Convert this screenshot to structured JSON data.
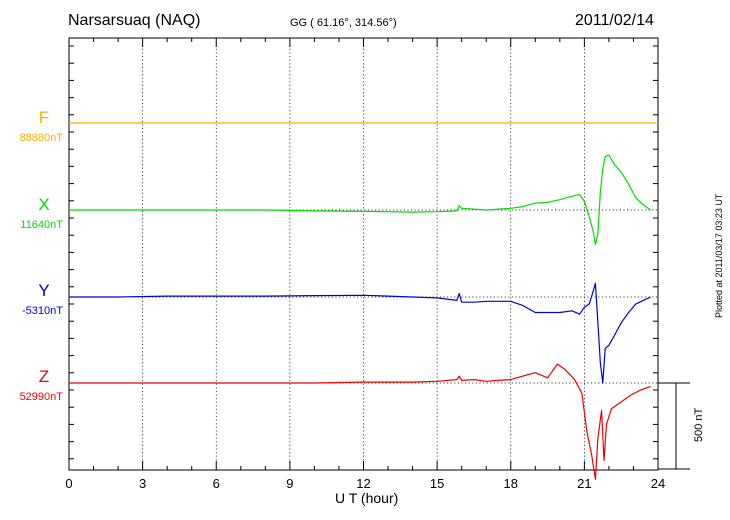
{
  "header": {
    "station": "Narsarsuaq (NAQ)",
    "coordinates": "GG ( 61.16°, 314.56°)",
    "date": "2011/02/14"
  },
  "footer": {
    "plotted": "Plotted at 2011/03/17 03:23 UT"
  },
  "scale_bar": {
    "label": "500 nT",
    "value_nT": 500
  },
  "chart_data": {
    "type": "line",
    "xlabel": "U T (hour)",
    "xlim": [
      0,
      24
    ],
    "xticks": [
      0,
      3,
      6,
      9,
      12,
      15,
      18,
      21,
      24
    ],
    "xtick_labels": [
      "0",
      "3",
      "6",
      "9",
      "12",
      "15",
      "18",
      "21",
      "24"
    ],
    "grid": true,
    "y_unit": "nT",
    "series": [
      {
        "name": "F",
        "baseline_label": "88880nT",
        "color": "#ffaa00",
        "x": [
          0,
          24
        ],
        "values": [
          0,
          0
        ]
      },
      {
        "name": "X",
        "baseline_label": "11640nT",
        "color": "#00dd00",
        "x": [
          0,
          2,
          4,
          6,
          8,
          10,
          12,
          13,
          14,
          15,
          15.8,
          15.9,
          16,
          16.5,
          17,
          17.5,
          18,
          18.5,
          19,
          19.5,
          20,
          20.5,
          20.8,
          21.0,
          21.2,
          21.35,
          21.45,
          21.55,
          21.65,
          21.75,
          21.85,
          22.0,
          22.2,
          22.5,
          22.8,
          23.1,
          23.4,
          23.7
        ],
        "values": [
          0,
          0,
          0,
          0,
          0,
          -5,
          -8,
          -10,
          -12,
          -10,
          -5,
          25,
          10,
          5,
          0,
          5,
          10,
          20,
          40,
          45,
          60,
          80,
          90,
          50,
          -40,
          -120,
          -200,
          -140,
          100,
          240,
          310,
          320,
          270,
          220,
          150,
          70,
          30,
          0
        ]
      },
      {
        "name": "Y",
        "baseline_label": "-5310nT",
        "color": "#0000dd",
        "x": [
          0,
          2,
          4,
          6,
          8,
          10,
          12,
          13,
          14,
          15,
          15.8,
          15.9,
          16,
          16.5,
          17,
          17.5,
          18,
          18.5,
          19,
          19.5,
          20,
          20.5,
          20.8,
          21.0,
          21.2,
          21.35,
          21.45,
          21.55,
          21.65,
          21.75,
          21.85,
          22.0,
          22.2,
          22.5,
          22.8,
          23.1,
          23.4,
          23.7
        ],
        "values": [
          0,
          0,
          5,
          5,
          5,
          8,
          10,
          5,
          0,
          -5,
          -20,
          20,
          -30,
          -30,
          -25,
          -25,
          -25,
          -50,
          -90,
          -90,
          -90,
          -80,
          -100,
          -60,
          -40,
          30,
          80,
          -150,
          -380,
          -500,
          -300,
          -280,
          -230,
          -150,
          -90,
          -40,
          -20,
          0
        ]
      },
      {
        "name": "Z",
        "baseline_label": "52990nT",
        "color": "#ee0000",
        "x": [
          0,
          2,
          4,
          6,
          8,
          10,
          12,
          13,
          14,
          15,
          15.8,
          15.9,
          16,
          16.5,
          17,
          17.5,
          18,
          18.5,
          19,
          19.5,
          19.9,
          20.2,
          20.6,
          20.9,
          21.1,
          21.3,
          21.45,
          21.55,
          21.7,
          21.8,
          21.9,
          22.1,
          22.5,
          22.9,
          23.3,
          23.7
        ],
        "values": [
          0,
          0,
          0,
          0,
          0,
          0,
          5,
          5,
          5,
          10,
          20,
          40,
          15,
          20,
          10,
          15,
          20,
          40,
          60,
          30,
          110,
          80,
          20,
          -60,
          -280,
          -420,
          -560,
          -320,
          -160,
          -450,
          -240,
          -150,
          -110,
          -70,
          -40,
          -20
        ]
      }
    ]
  }
}
